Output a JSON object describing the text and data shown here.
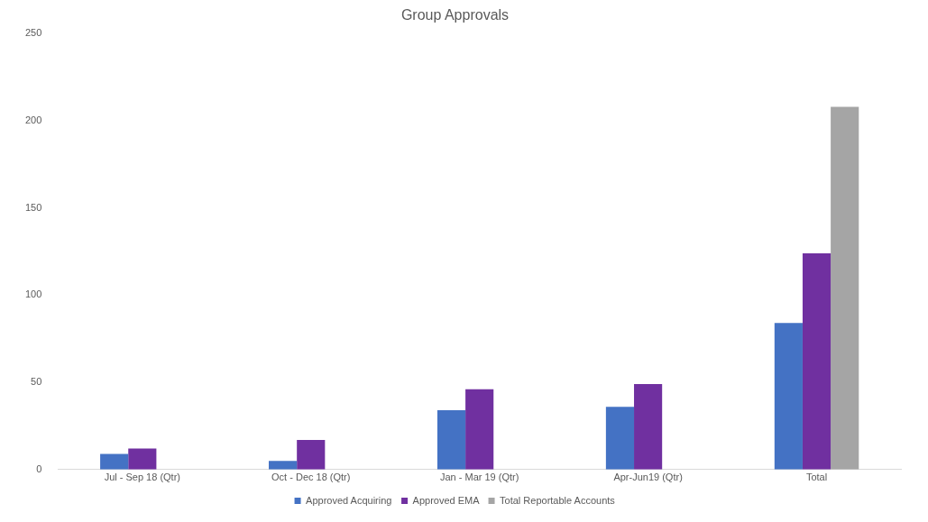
{
  "chart_data": {
    "type": "bar",
    "title": "Group Approvals",
    "categories": [
      "Jul - Sep 18 (Qtr)",
      "Oct - Dec 18 (Qtr)",
      "Jan - Mar 19 (Qtr)",
      "Apr-Jun19 (Qtr)",
      "Total"
    ],
    "series": [
      {
        "name": "Approved Acquiring",
        "color": "#4472c4",
        "values": [
          9,
          5,
          34,
          36,
          84
        ]
      },
      {
        "name": "Approved EMA",
        "color": "#7030a0",
        "values": [
          12,
          17,
          46,
          49,
          124
        ]
      },
      {
        "name": "Total Reportable Accounts",
        "color": "#a5a5a5",
        "values": [
          null,
          null,
          null,
          null,
          208
        ]
      }
    ],
    "ylim": [
      0,
      250
    ],
    "yticks": [
      0,
      50,
      100,
      150,
      200,
      250
    ],
    "grid": false,
    "legend": "bottom"
  }
}
